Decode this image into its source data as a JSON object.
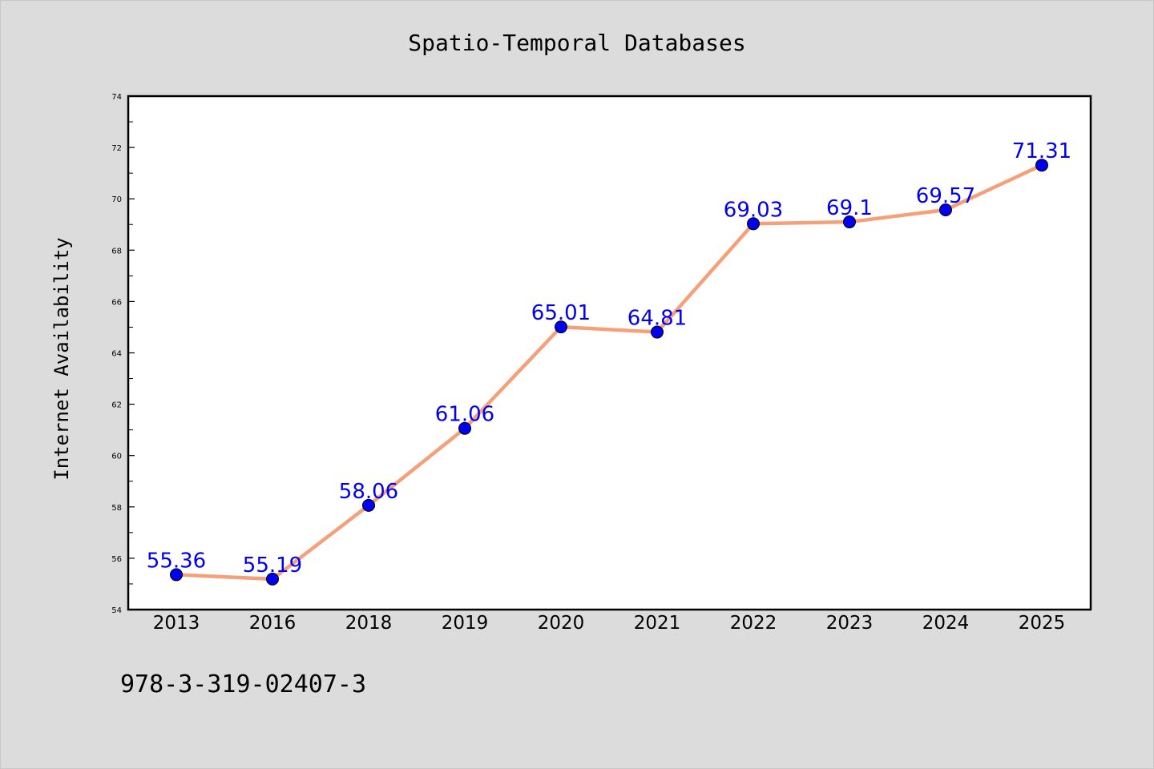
{
  "chart_data": {
    "type": "line",
    "title": "Spatio-Temporal Databases",
    "xlabel": "",
    "ylabel": "Internet Availability",
    "categories": [
      "2013",
      "2016",
      "2018",
      "2019",
      "2020",
      "2021",
      "2022",
      "2023",
      "2024",
      "2025"
    ],
    "series": [
      {
        "values": [
          55.36,
          55.19,
          58.06,
          61.06,
          65.01,
          64.81,
          69.03,
          69.1,
          69.57,
          71.31
        ],
        "labels": [
          "55.36",
          "55.19",
          "58.06",
          "61.06",
          "65.01",
          "64.81",
          "69.03",
          "69.1",
          "69.57",
          "71.31"
        ],
        "line_color": "#f4a07a",
        "marker_color": "#0000ee",
        "label_color": "#0000ee"
      }
    ],
    "ylim": [
      54,
      74
    ],
    "yticks": [
      "54",
      "56",
      "58",
      "60",
      "62",
      "64",
      "66",
      "68",
      "70",
      "72",
      "74"
    ],
    "grid": false,
    "legend": "none"
  },
  "footer_text": "978-3-319-02407-3",
  "colors": {
    "background": "#dcdcdc",
    "plot_background": "#ffffff",
    "axis": "#000000"
  }
}
